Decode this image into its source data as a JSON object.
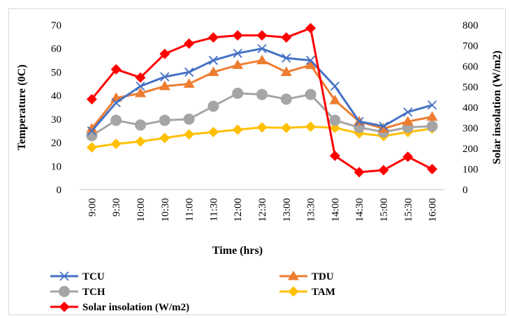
{
  "chart_data": {
    "type": "line",
    "categories": [
      "9:00",
      "9:30",
      "10:00",
      "10:30",
      "11:00",
      "11:30",
      "12:00",
      "12:30",
      "13:00",
      "13:30",
      "14:00",
      "14:30",
      "15:00",
      "15:30",
      "16:00"
    ],
    "xlabel": "Time (hrs)",
    "ylabel": "Temperature (0C)",
    "y2label": "Solar insolation (W/m2)",
    "ylim": [
      0,
      70
    ],
    "y2lim": [
      0,
      800
    ],
    "yticks": [
      "0",
      "10",
      "20",
      "30",
      "40",
      "50",
      "60",
      "70"
    ],
    "y2ticks": [
      "0",
      "100",
      "200",
      "300",
      "400",
      "500",
      "600",
      "700",
      "800"
    ],
    "grid": false,
    "legend_position": "bottom",
    "series": [
      {
        "name": "TCU",
        "axis": "left",
        "color": "#4472c4",
        "marker": "x",
        "values": [
          25,
          37,
          44,
          48,
          50,
          55,
          58,
          60,
          56,
          55,
          44,
          29,
          27,
          33,
          36
        ]
      },
      {
        "name": "TDU",
        "axis": "left",
        "color": "#ed7d31",
        "marker": "triangle",
        "values": [
          26,
          39,
          41,
          44,
          45,
          50,
          53,
          55,
          50,
          53,
          38,
          29,
          26,
          29,
          31
        ]
      },
      {
        "name": "TCH",
        "axis": "left",
        "color": "#a5a5a5",
        "marker": "circle",
        "values": [
          23,
          29.5,
          27.5,
          29.5,
          30,
          35.5,
          41,
          40.5,
          38.5,
          40.5,
          29.5,
          26.5,
          24.5,
          26.5,
          27
        ]
      },
      {
        "name": "TAM",
        "axis": "left",
        "color": "#ffc000",
        "marker": "diamond",
        "values": [
          18,
          19.5,
          20.5,
          22,
          23.5,
          24.5,
          25.5,
          26.5,
          26.3,
          26.8,
          26.3,
          24,
          22.8,
          24.5,
          26
        ]
      },
      {
        "name": "Solar insolation (W/m2)",
        "axis": "right",
        "color": "#ff0000",
        "marker": "diamond",
        "values": [
          440,
          585,
          545,
          660,
          710,
          740,
          750,
          750,
          740,
          785,
          165,
          85,
          95,
          160,
          100
        ]
      }
    ]
  }
}
